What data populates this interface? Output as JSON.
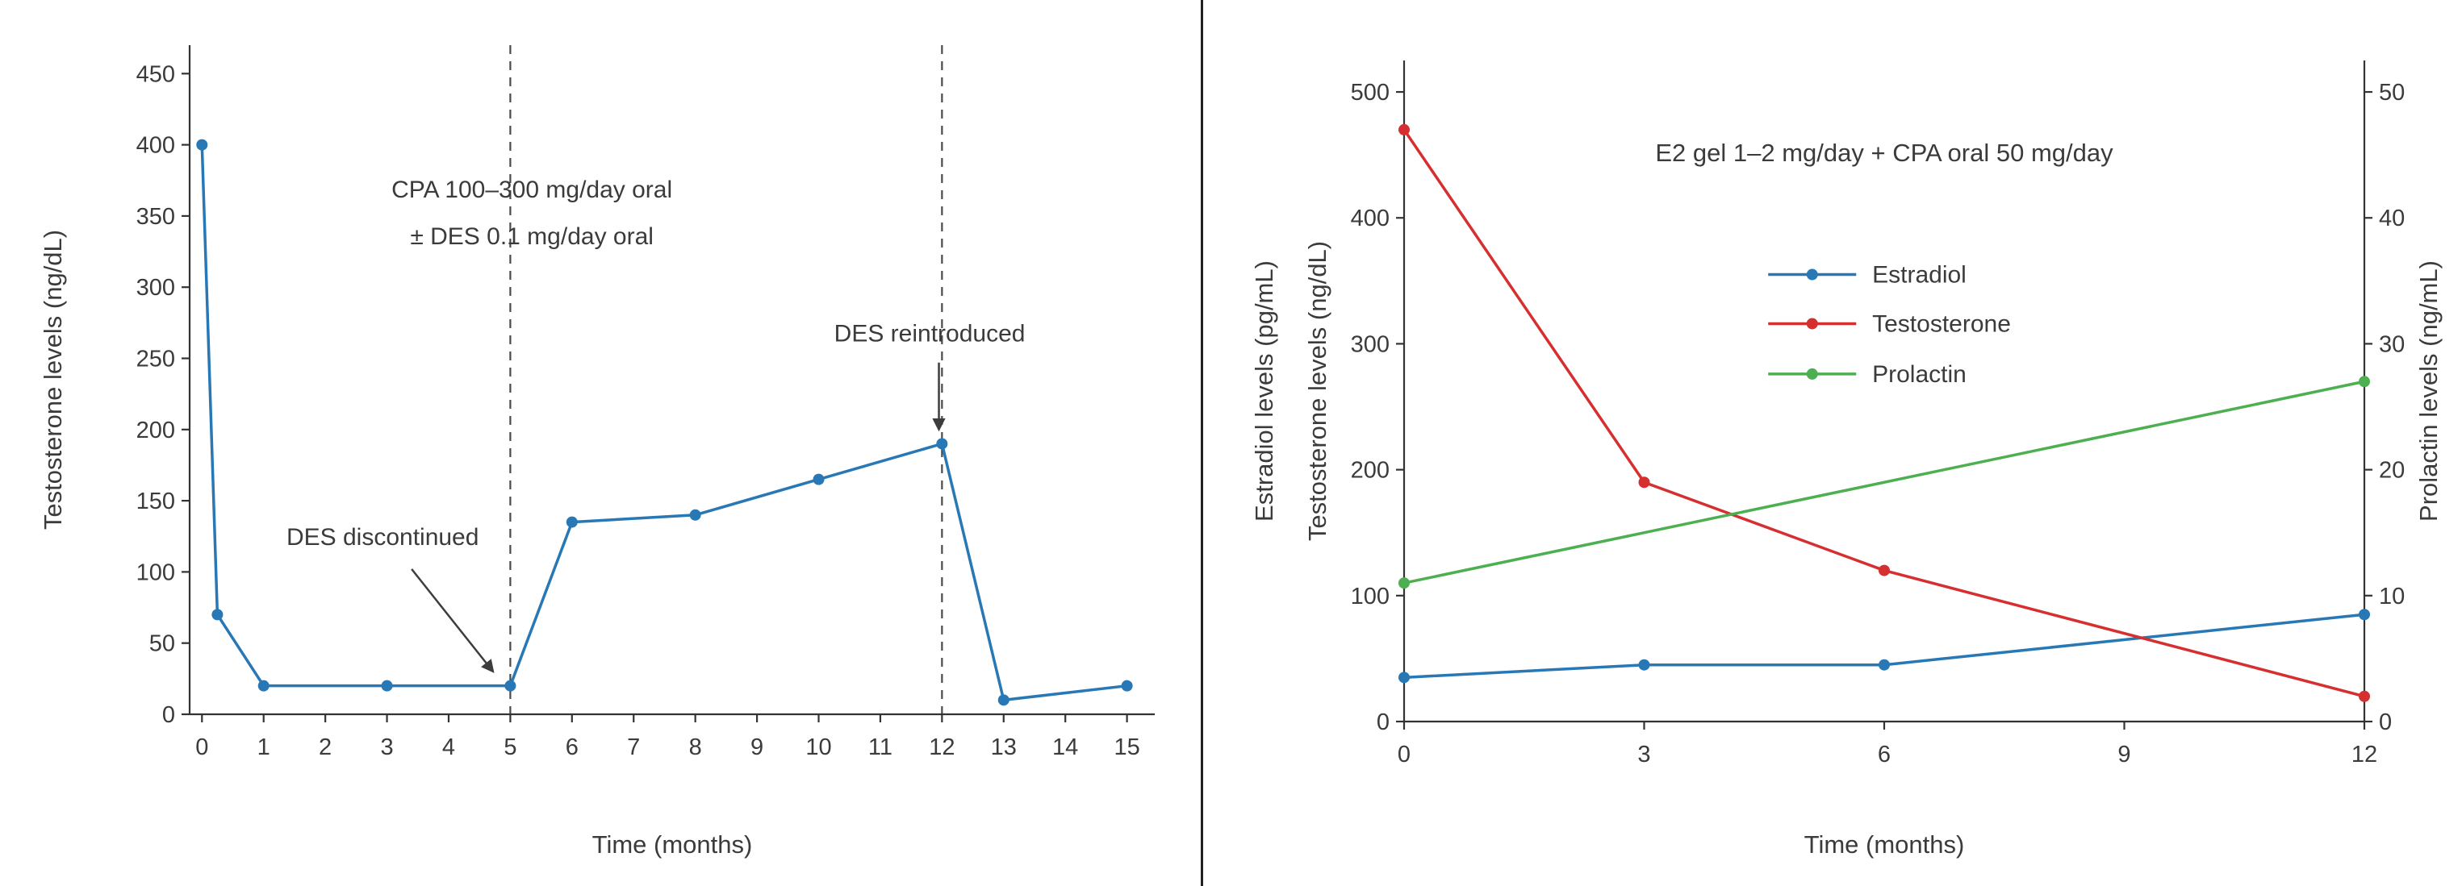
{
  "figure": {
    "background": "#ffffff",
    "divider_color": "#222222",
    "text_color": "#3b3b3b",
    "axis_color": "#333333",
    "arrow_color": "#3d3d3d"
  },
  "chart_data": [
    {
      "id": "left",
      "type": "line",
      "xlabel": "Time (months)",
      "ylabel": "Testosterone levels (ng/dL)",
      "x_ticks": [
        0,
        1,
        2,
        3,
        4,
        5,
        6,
        7,
        8,
        9,
        10,
        11,
        12,
        13,
        14,
        15
      ],
      "y_ticks": [
        0,
        50,
        100,
        150,
        200,
        250,
        300,
        350,
        400,
        450
      ],
      "xlim": [
        -0.2,
        15.45
      ],
      "ylim": [
        0,
        470
      ],
      "grid": false,
      "legend": null,
      "series": [
        {
          "name": "Testosterone",
          "color": "#2878b5",
          "axis": "left",
          "x": [
            0,
            0.25,
            1,
            3,
            5,
            6,
            8,
            10,
            12,
            13,
            15
          ],
          "y": [
            400,
            70,
            20,
            20,
            20,
            135,
            140,
            165,
            190,
            10,
            20
          ]
        }
      ],
      "vlines": [
        {
          "x": 5,
          "style": "dashed"
        },
        {
          "x": 12,
          "style": "dashed"
        }
      ],
      "annotation_lines": [
        {
          "text": "CPA 100–300 mg/day oral",
          "x": 5.35,
          "y": 363
        },
        {
          "text": "± DES 0.1 mg/day oral",
          "x": 5.35,
          "y": 330
        }
      ],
      "annotations": [
        {
          "text": "DES discontinued",
          "text_x": 2.93,
          "text_y": 119,
          "arrow_from": [
            3.4,
            102
          ],
          "arrow_to": [
            4.72,
            30
          ]
        },
        {
          "text": "DES reintroduced",
          "text_x": 11.8,
          "text_y": 262,
          "arrow_from": [
            11.95,
            247
          ],
          "arrow_to": [
            11.95,
            200
          ]
        }
      ]
    },
    {
      "id": "right",
      "type": "line",
      "title": "E2 gel 1–2 mg/day + CPA oral 50 mg/day",
      "title_x": 6,
      "title_y": 445,
      "xlabel": "Time (months)",
      "ylabel_left_lines": [
        "Estradiol levels (pg/mL)",
        "Testosterone levels (ng/dL)"
      ],
      "ylabel_right": "Prolactin levels (ng/mL)",
      "x_ticks": [
        0,
        3,
        6,
        9,
        12
      ],
      "y_ticks": [
        0,
        100,
        200,
        300,
        400,
        500
      ],
      "y2_ticks": [
        0,
        10,
        20,
        30,
        40,
        50
      ],
      "xlim": [
        0,
        12
      ],
      "ylim": [
        0,
        525
      ],
      "y2lim": [
        0,
        52.5
      ],
      "grid": false,
      "series": [
        {
          "name": "Estradiol",
          "color": "#2878b5",
          "axis": "left",
          "x": [
            0,
            3,
            6,
            12
          ],
          "y": [
            35,
            45,
            45,
            85
          ]
        },
        {
          "name": "Testosterone",
          "color": "#d62f2f",
          "axis": "left",
          "x": [
            0,
            3,
            6,
            12
          ],
          "y": [
            470,
            190,
            120,
            20
          ]
        },
        {
          "name": "Prolactin",
          "color": "#4caf50",
          "axis": "right",
          "x": [
            0,
            12
          ],
          "y": [
            11,
            27
          ]
        }
      ],
      "legend": {
        "position": "upper-center",
        "entries": [
          "Estradiol",
          "Testosterone",
          "Prolactin"
        ],
        "line_x": [
          4.55,
          5.65
        ],
        "label_x": 5.85,
        "rows_y": [
          355,
          316,
          276
        ]
      }
    }
  ]
}
